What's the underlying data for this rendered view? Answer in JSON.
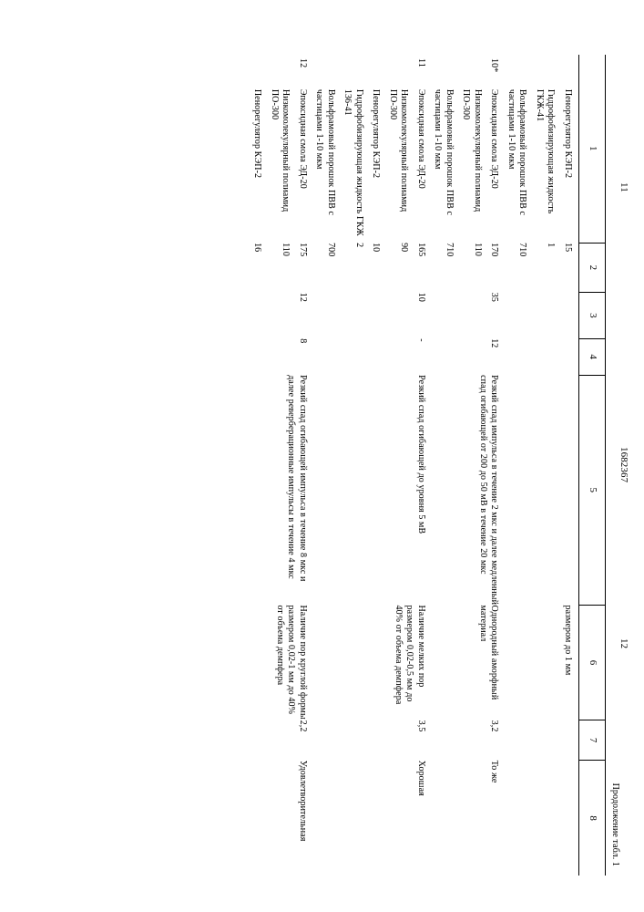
{
  "doc_number": "1682367",
  "cont_label": "Продолжение табл. 1",
  "page_left": "11",
  "page_right": "12",
  "head": [
    "1",
    "2",
    "3",
    "4",
    "5",
    "6",
    "7",
    "8"
  ],
  "rows": [
    {
      "n": "",
      "mats": [
        [
          "Пенорегулятор КЭП-2",
          "15"
        ],
        [
          "Гидрофобизирующая жидкость ГКЖ-41",
          "1"
        ],
        [
          "Вольфрамовый порошок ПВВ с частицами 1-10 мкм",
          "710"
        ]
      ],
      "c3": "",
      "c4": "",
      "c5": "",
      "c6": "размером до 1 мм",
      "c7": "",
      "c8": ""
    },
    {
      "n": "10*",
      "mats": [
        [
          "Эпоксидная смола ЭД-20",
          "170"
        ],
        [
          "Низкомолекулярный полиамид ПО-300",
          "110"
        ],
        [
          "Вольфрамовый порошок ПВВ с частицами 1-10 мкм",
          "710"
        ]
      ],
      "c3": "35",
      "c4": "12",
      "c5": "Резкий спад импульса в течение 2 мкс и далее медленный спад огибающей от 200 до 50 мВ в течение 20 мкс",
      "c6": "Однородный аморфный материал",
      "c7": "3,2",
      "c8": "То же"
    },
    {
      "n": "11",
      "mats": [
        [
          "Эпоксидная смола ЭД-20",
          "165"
        ],
        [
          "Низкомолекулярный полиамид ПО-300",
          "90"
        ],
        [
          "Пенорегулятор КЭП-2",
          "10"
        ],
        [
          "Гидрофобизирующая жидкость ГКЖ 136-41",
          "2"
        ],
        [
          "Вольфрамовый порошок ПВВ с частицами 1-10 мкм",
          "700"
        ]
      ],
      "c3": "10",
      "c4": "-",
      "c5": "Резкий спад огибающей до уровня 5 мВ",
      "c6": "Наличие мелких пор размером 0,02-0,5 мм до 40% от объема демпфера",
      "c7": "3,5",
      "c8": "Хорошая"
    },
    {
      "n": "12",
      "mats": [
        [
          "Эпоксидная смола ЭД-20",
          "175"
        ],
        [
          "Низкомолекулярный полиамид ПО-300",
          "110"
        ],
        [
          "Пенорегулятор КЭП-2",
          "16"
        ]
      ],
      "c3": "12",
      "c4": "8",
      "c5": "Резкий спад огибающей импульса в течение 8 мкс и далее реверберационные импульсы в течение 4 мкс",
      "c6": "Наличие пор круглой формы размером 0,02-1 мм до 40% от объема демпфера",
      "c7": "2,2",
      "c8": "Удовлетворительная"
    }
  ]
}
